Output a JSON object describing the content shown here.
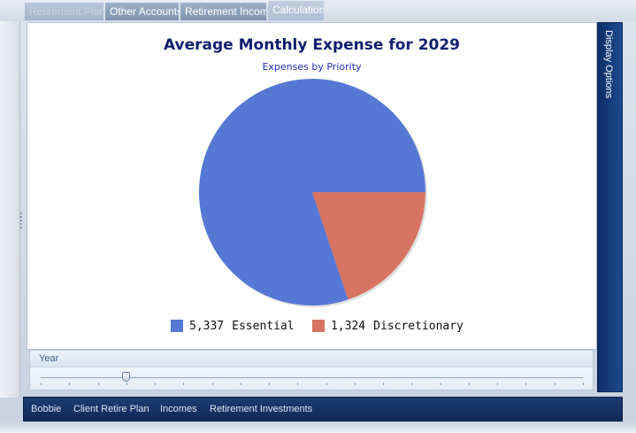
{
  "tabs": [
    {
      "label": "Retirement Plan",
      "state": "dim"
    },
    {
      "label": "Other Accounts",
      "state": "normal"
    },
    {
      "label": "Retirement Income",
      "state": "normal"
    },
    {
      "label": "Calculations",
      "state": "active"
    }
  ],
  "side_panel": {
    "label": "Display Options"
  },
  "year_panel": {
    "label": "Year"
  },
  "bottom_tabs": [
    "Bobbie",
    "Client Retire Plan",
    "Incomes",
    "Retirement Investments"
  ],
  "chart_data": {
    "type": "pie",
    "title": "Average Monthly Expense for 2029",
    "subtitle": "Expenses by Priority",
    "series": [
      {
        "name": "Essential",
        "value": 5337,
        "label": "5,337",
        "color": "#5578d4"
      },
      {
        "name": "Discretionary",
        "value": 1324,
        "label": "1,324",
        "color": "#d77562"
      }
    ],
    "legend_position": "bottom"
  }
}
